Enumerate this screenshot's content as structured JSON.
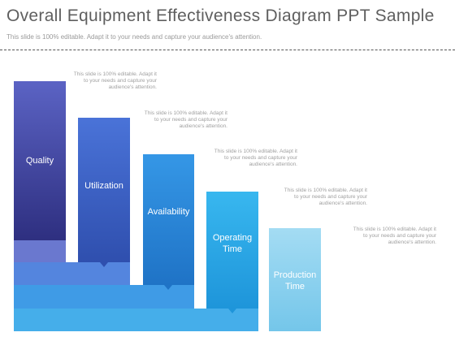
{
  "header": {
    "title": "Overall Equipment Effectiveness Diagram PPT Sample",
    "subtitle": "This slide is 100% editable. Adapt it to your needs and capture your audience's attention."
  },
  "colors": {
    "quality": "#3f3f9a",
    "utilization": "#3e63c8",
    "availability": "#2b86d8",
    "operating": "#28a6e6",
    "production": "#86d0ee",
    "base1": "#6a78cf",
    "base2": "#4e82dc",
    "base3": "#3a9be6"
  },
  "steps": [
    {
      "label_line1": "Quality",
      "label_line2": "",
      "note_line1": "This slide is 100% editable. Adapt it",
      "note_line2": "to your needs and capture your",
      "note_line3": "audience's attention."
    },
    {
      "label_line1": "Utilization",
      "label_line2": "",
      "note_line1": "This slide is 100% editable. Adapt it",
      "note_line2": "to your needs and capture your",
      "note_line3": "audience's attention."
    },
    {
      "label_line1": "Availability",
      "label_line2": "",
      "note_line1": "This slide is 100% editable. Adapt it",
      "note_line2": "to your needs and capture your",
      "note_line3": "audience's attention."
    },
    {
      "label_line1": "Operating",
      "label_line2": "Time",
      "note_line1": "This slide is 100% editable. Adapt it",
      "note_line2": "to your needs and capture your",
      "note_line3": "audience's attention."
    },
    {
      "label_line1": "Production",
      "label_line2": "Time",
      "note_line1": "This slide is 100% editable. Adapt it",
      "note_line2": "to your needs and capture your",
      "note_line3": "audience's attention."
    }
  ]
}
